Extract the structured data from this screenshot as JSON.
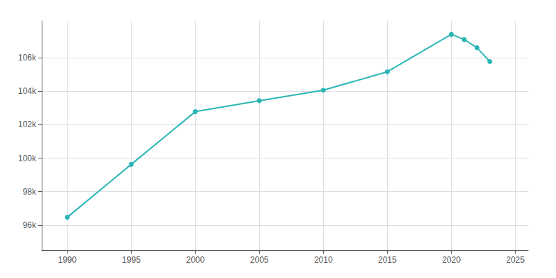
{
  "chart_data": {
    "type": "line",
    "x": [
      1990,
      1995,
      2000,
      2005,
      2010,
      2015,
      2020,
      2021,
      2022,
      2023
    ],
    "values": [
      96466,
      99632,
      102778,
      103430,
      104057,
      105162,
      107395,
      107085,
      106595,
      105768
    ],
    "color": "#2ab5b5",
    "marker": "circle",
    "xlim": [
      1988,
      2026
    ],
    "ylim": [
      94500,
      108200
    ],
    "xticks": [
      1990,
      1995,
      2000,
      2005,
      2010,
      2015,
      2020,
      2025
    ],
    "yticks": [
      {
        "value": 96000,
        "label": "96k"
      },
      {
        "value": 98000,
        "label": "98k"
      },
      {
        "value": 100000,
        "label": "100k"
      },
      {
        "value": 102000,
        "label": "102k"
      },
      {
        "value": 104000,
        "label": "104k"
      },
      {
        "value": 106000,
        "label": "106k"
      }
    ],
    "grid": true
  }
}
